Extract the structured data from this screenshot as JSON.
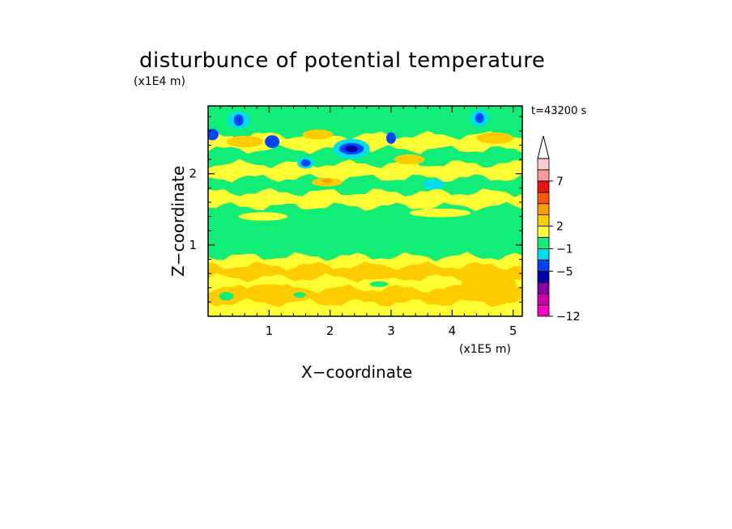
{
  "chart_data": {
    "type": "heatmap",
    "title": "disturbunce of potential temperature",
    "xlabel": "X−coordinate",
    "ylabel": "Z−coordinate",
    "x_unit": "(x1E5 m)",
    "z_unit": "(x1E4 m)",
    "annotation": "t=43200 s",
    "xlim": [
      0,
      5.15
    ],
    "ylim": [
      0,
      2.95
    ],
    "x_ticks": [
      1,
      2,
      3,
      4,
      5
    ],
    "x_tick_labels": [
      "1",
      "2",
      "3",
      "4",
      "5"
    ],
    "y_ticks": [
      1,
      2
    ],
    "y_tick_labels": [
      "1",
      "2"
    ],
    "colorbar": {
      "colors": [
        "#ff00cc",
        "#cc00aa",
        "#8800aa",
        "#0000aa",
        "#0044ff",
        "#00ddee",
        "#11ee77",
        "#ffff33",
        "#ffcc00",
        "#ff9900",
        "#ff5500",
        "#ee1111",
        "#ff9999",
        "#ffcccc"
      ],
      "tick_labels": [
        "−12",
        "−5",
        "−1",
        "2",
        "7"
      ],
      "extend": "max"
    },
    "bands": [
      {
        "z0": 0.0,
        "z1": 0.2,
        "color": "#ffff33"
      },
      {
        "z0": 0.2,
        "z1": 0.4,
        "color": "#ffcc00"
      },
      {
        "z0": 0.4,
        "z1": 0.55,
        "color": "#ffff33"
      },
      {
        "z0": 0.55,
        "z1": 0.72,
        "color": "#ffcc00"
      },
      {
        "z0": 0.72,
        "z1": 0.85,
        "color": "#ffff33"
      },
      {
        "z0": 0.85,
        "z1": 1.55,
        "color": "#11ee77"
      },
      {
        "z0": 1.55,
        "z1": 1.75,
        "color": "#ffff33"
      },
      {
        "z0": 1.75,
        "z1": 1.95,
        "color": "#11ee77"
      },
      {
        "z0": 1.95,
        "z1": 2.15,
        "color": "#ffff33"
      },
      {
        "z0": 2.15,
        "z1": 2.35,
        "color": "#11ee77"
      },
      {
        "z0": 2.35,
        "z1": 2.55,
        "color": "#ffff33"
      },
      {
        "z0": 2.55,
        "z1": 2.95,
        "color": "#11ee77"
      }
    ],
    "blobs": [
      {
        "x": 0.5,
        "z": 2.75,
        "rx": 0.18,
        "rz": 0.12,
        "color": "#00ddee"
      },
      {
        "x": 0.5,
        "z": 2.75,
        "rx": 0.08,
        "rz": 0.08,
        "color": "#0044ff"
      },
      {
        "x": 0.07,
        "z": 2.55,
        "rx": 0.1,
        "rz": 0.08,
        "color": "#0044ff"
      },
      {
        "x": 1.05,
        "z": 2.45,
        "rx": 0.12,
        "rz": 0.09,
        "color": "#0044ff"
      },
      {
        "x": 1.6,
        "z": 2.15,
        "rx": 0.14,
        "rz": 0.08,
        "color": "#00ddee"
      },
      {
        "x": 1.6,
        "z": 2.15,
        "rx": 0.08,
        "rz": 0.05,
        "color": "#0044ff"
      },
      {
        "x": 2.35,
        "z": 2.35,
        "rx": 0.3,
        "rz": 0.14,
        "color": "#00ddee"
      },
      {
        "x": 2.35,
        "z": 2.35,
        "rx": 0.2,
        "rz": 0.08,
        "color": "#0044ff"
      },
      {
        "x": 2.35,
        "z": 2.35,
        "rx": 0.1,
        "rz": 0.05,
        "color": "#0000aa"
      },
      {
        "x": 3.0,
        "z": 2.5,
        "rx": 0.08,
        "rz": 0.08,
        "color": "#0044ff"
      },
      {
        "x": 4.45,
        "z": 2.78,
        "rx": 0.15,
        "rz": 0.12,
        "color": "#00ddee"
      },
      {
        "x": 4.45,
        "z": 2.78,
        "rx": 0.07,
        "rz": 0.07,
        "color": "#0044ff"
      },
      {
        "x": 3.7,
        "z": 1.85,
        "rx": 0.18,
        "rz": 0.07,
        "color": "#00ddee"
      },
      {
        "x": 0.6,
        "z": 2.45,
        "rx": 0.3,
        "rz": 0.08,
        "color": "#ffcc00"
      },
      {
        "x": 1.8,
        "z": 2.55,
        "rx": 0.25,
        "rz": 0.07,
        "color": "#ffcc00"
      },
      {
        "x": 3.3,
        "z": 2.2,
        "rx": 0.25,
        "rz": 0.07,
        "color": "#ffcc00"
      },
      {
        "x": 4.7,
        "z": 2.5,
        "rx": 0.3,
        "rz": 0.08,
        "color": "#ffcc00"
      },
      {
        "x": 1.95,
        "z": 1.88,
        "rx": 0.25,
        "rz": 0.06,
        "color": "#ffcc00"
      },
      {
        "x": 1.95,
        "z": 1.9,
        "rx": 0.08,
        "rz": 0.03,
        "color": "#ff9900"
      },
      {
        "x": 1.0,
        "z": 0.35,
        "rx": 0.4,
        "rz": 0.1,
        "color": "#ffcc00"
      },
      {
        "x": 2.7,
        "z": 0.6,
        "rx": 0.5,
        "rz": 0.08,
        "color": "#ffcc00"
      },
      {
        "x": 4.6,
        "z": 0.45,
        "rx": 0.45,
        "rz": 0.15,
        "color": "#ffcc00"
      },
      {
        "x": 0.3,
        "z": 0.28,
        "rx": 0.12,
        "rz": 0.06,
        "color": "#11ee77"
      },
      {
        "x": 1.5,
        "z": 0.3,
        "rx": 0.1,
        "rz": 0.04,
        "color": "#11ee77"
      },
      {
        "x": 2.8,
        "z": 0.45,
        "rx": 0.15,
        "rz": 0.04,
        "color": "#11ee77"
      },
      {
        "x": 0.9,
        "z": 1.4,
        "rx": 0.4,
        "rz": 0.06,
        "color": "#ffff33"
      },
      {
        "x": 3.8,
        "z": 1.45,
        "rx": 0.5,
        "rz": 0.06,
        "color": "#ffff33"
      }
    ]
  }
}
